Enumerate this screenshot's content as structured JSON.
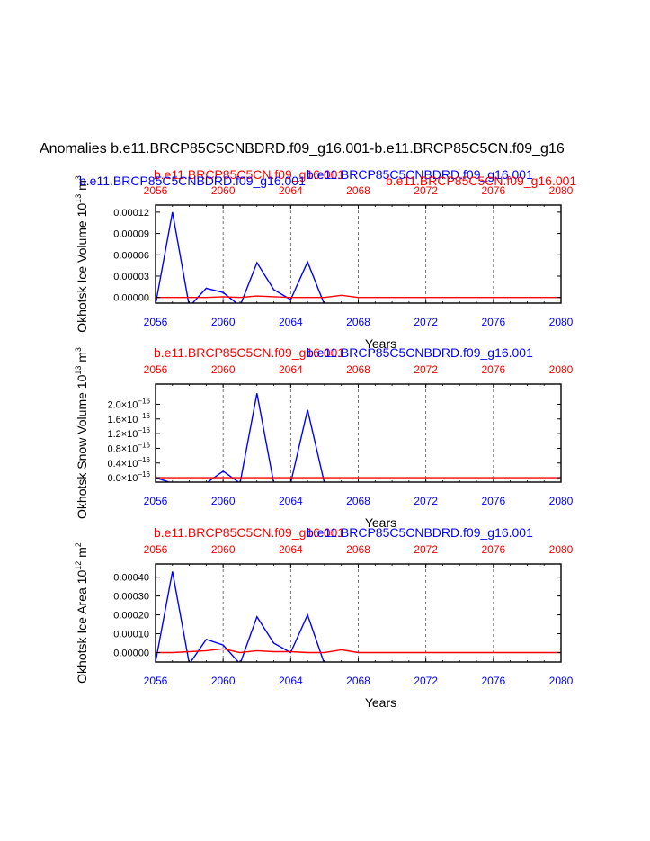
{
  "title": "Anomalies b.e11.BRCP85C5CNBDRD.f09_g16.001-b.e11.BRCP85C5CN.f09_g16",
  "colors": {
    "blue": "#0000ff",
    "red": "#ff0000",
    "black": "#000000",
    "grid": "#555555"
  },
  "chart_data": [
    {
      "type": "line",
      "ylabel": "Okhotsk Ice Volume 10",
      "yunit": "13  m3",
      "xlabel": "Years",
      "top_labels": [
        {
          "text": "b.e11.BRCP85C5CN.f09_g16.001",
          "color": "#ff0000"
        },
        {
          "text": "b.e11.BRCP85C5CNBDRD.f09_g16.001",
          "color": "#0000ff"
        },
        {
          "text": "b.e11.BRCP85C5CNBDRD.f09_g16.001",
          "color": "#0000ff"
        },
        {
          "text": "b.e11.BRCP85C5CN.f09_g16.001",
          "color": "#ff0000"
        }
      ],
      "xlim": [
        2056,
        2080
      ],
      "ylim": [
        -8e-06,
        0.00013
      ],
      "xticks": [
        "2056",
        "2060",
        "2064",
        "2068",
        "2072",
        "2076",
        "2080"
      ],
      "yticks": [
        0.0,
        3e-05,
        6e-05,
        9e-05,
        0.00012
      ],
      "yticklabels": [
        "0.00000",
        "0.00003",
        "0.00006",
        "0.00009",
        "0.00012"
      ],
      "series": [
        {
          "color": "#0000ff",
          "x": [
            2056,
            2057,
            2058,
            2059,
            2060,
            2061,
            2062,
            2063,
            2064,
            2065,
            2066,
            2067,
            2068,
            2069,
            2070,
            2071,
            2072,
            2073,
            2074,
            2075,
            2076,
            2077,
            2078,
            2079,
            2080
          ],
          "y": [
            -1e-05,
            0.00012,
            -1.3e-05,
            1.3e-05,
            7e-06,
            -1.2e-05,
            4.9e-05,
            1.1e-05,
            -3e-06,
            5e-05,
            -1e-05,
            -1e-05,
            -1e-05,
            -1e-05,
            -1e-05,
            -1e-05,
            -1e-05,
            -1e-05,
            -1e-05,
            -1e-05,
            -1e-05,
            -1e-05,
            -1e-05,
            -1e-05,
            -1e-05
          ]
        },
        {
          "color": "#ff0000",
          "x": [
            2056,
            2057,
            2058,
            2059,
            2060,
            2061,
            2062,
            2063,
            2064,
            2065,
            2066,
            2067,
            2068,
            2069,
            2070,
            2071,
            2072,
            2073,
            2074,
            2075,
            2076,
            2077,
            2078,
            2079,
            2080
          ],
          "y": [
            0.0,
            0.0,
            0.0,
            0.0,
            1e-06,
            0.0,
            2e-06,
            1e-06,
            0.0,
            0.0,
            0.0,
            3e-06,
            0.0,
            0.0,
            0.0,
            0.0,
            0.0,
            0.0,
            0.0,
            0.0,
            0.0,
            0.0,
            0.0,
            0.0,
            0.0
          ]
        }
      ]
    },
    {
      "type": "line",
      "ylabel": "Okhotsk Snow Volume 10",
      "yunit": "13  m3",
      "xlabel": "Years",
      "top_labels": [
        {
          "text": "b.e11.BRCP85C5CN.f09_g16.001",
          "color": "#ff0000"
        },
        {
          "text": "b.e11.BRCP85C5CNBDRD.f09_g16.001",
          "color": "#0000ff"
        }
      ],
      "xlim": [
        2056,
        2080
      ],
      "ylim": [
        -0.12,
        2.55
      ],
      "xticks": [
        "2056",
        "2060",
        "2064",
        "2068",
        "2072",
        "2076",
        "2080"
      ],
      "yticks": [
        0.0,
        0.4,
        0.8,
        1.2,
        1.6,
        2.0
      ],
      "yticklabels": [
        "0.0x10-16",
        "0.4x10-16",
        "0.8x10-16",
        "1.2x10-16",
        "1.6x10-16",
        "2.0x10-16"
      ],
      "series": [
        {
          "color": "#0000ff",
          "x": [
            2056,
            2057,
            2058,
            2059,
            2060,
            2061,
            2062,
            2063,
            2064,
            2065,
            2066,
            2067,
            2068,
            2069,
            2070,
            2071,
            2072,
            2073,
            2074,
            2075,
            2076,
            2077,
            2078,
            2079,
            2080
          ],
          "y": [
            0.0,
            -0.15,
            -0.15,
            -0.15,
            0.18,
            -0.15,
            2.3,
            -0.15,
            -0.15,
            1.85,
            -0.15,
            -0.15,
            -0.15,
            -0.15,
            -0.15,
            -0.15,
            -0.15,
            -0.15,
            -0.15,
            -0.15,
            -0.15,
            -0.15,
            -0.15,
            -0.15,
            -0.15
          ]
        },
        {
          "color": "#ff0000",
          "x": [
            2056,
            2080
          ],
          "y": [
            0.0,
            0.0
          ]
        }
      ]
    },
    {
      "type": "line",
      "ylabel": "Okhotsk Ice Area 10",
      "yunit": "12  m2",
      "xlabel": "Years",
      "top_labels": [
        {
          "text": "b.e11.BRCP85C5CN.f09_g16.001",
          "color": "#ff0000"
        },
        {
          "text": "b.e11.BRCP85C5CNBDRD.f09_g16.001",
          "color": "#0000ff"
        }
      ],
      "xlim": [
        2056,
        2080
      ],
      "ylim": [
        -5e-05,
        0.00047
      ],
      "xticks": [
        "2056",
        "2060",
        "2064",
        "2068",
        "2072",
        "2076",
        "2080"
      ],
      "yticks": [
        0.0,
        0.0001,
        0.0002,
        0.0003,
        0.0004
      ],
      "yticklabels": [
        "0.00000",
        "0.00010",
        "0.00020",
        "0.00030",
        "0.00040"
      ],
      "series": [
        {
          "color": "#0000ff",
          "x": [
            2056,
            2057,
            2058,
            2059,
            2060,
            2061,
            2062,
            2063,
            2064,
            2065,
            2066,
            2067,
            2068,
            2069,
            2070,
            2071,
            2072,
            2073,
            2074,
            2075,
            2076,
            2077,
            2078,
            2079,
            2080
          ],
          "y": [
            -5e-05,
            0.00043,
            -6e-05,
            7e-05,
            4e-05,
            -6e-05,
            0.00019,
            5e-05,
            0.0,
            0.0002,
            -6e-05,
            -6e-05,
            -6e-05,
            -6e-05,
            -6e-05,
            -6e-05,
            -6e-05,
            -6e-05,
            -6e-05,
            -6e-05,
            -6e-05,
            -6e-05,
            -6e-05,
            -6e-05,
            -6e-05
          ]
        },
        {
          "color": "#ff0000",
          "x": [
            2056,
            2057,
            2058,
            2059,
            2060,
            2061,
            2062,
            2063,
            2064,
            2065,
            2066,
            2067,
            2068,
            2069,
            2070,
            2071,
            2072,
            2073,
            2074,
            2075,
            2076,
            2077,
            2078,
            2079,
            2080
          ],
          "y": [
            0.0,
            0.0,
            5e-06,
            1e-05,
            2e-05,
            0.0,
            1e-05,
            5e-06,
            5e-06,
            0.0,
            0.0,
            1.5e-05,
            0.0,
            0.0,
            0.0,
            0.0,
            0.0,
            0.0,
            0.0,
            0.0,
            0.0,
            0.0,
            0.0,
            0.0,
            0.0
          ]
        }
      ]
    }
  ]
}
